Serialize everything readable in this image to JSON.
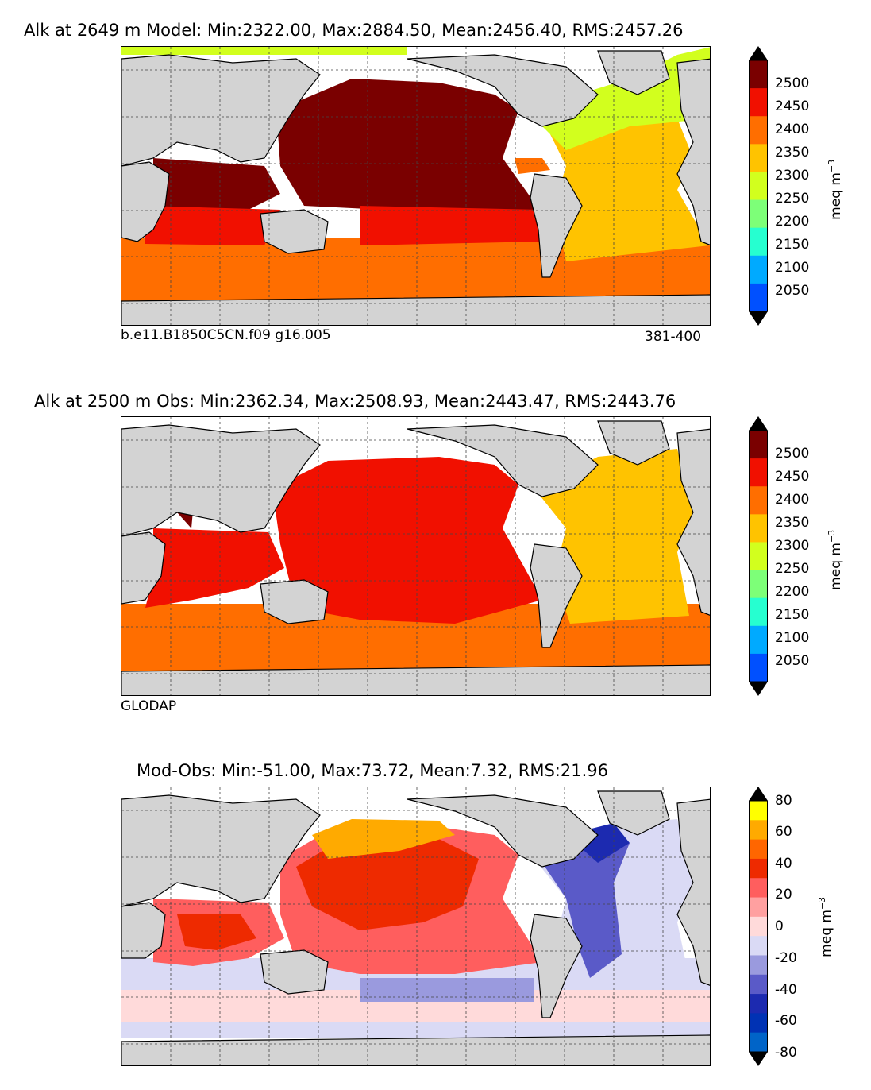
{
  "panels": [
    {
      "title": "Alk at 2649 m Model: Min:2322.00, Max:2884.50, Mean:2456.40, RMS:2457.26",
      "caption_left": "b.e11.B1850C5CN.f09 g16.005",
      "caption_right": "381-400"
    },
    {
      "title": "Alk at 2500 m Obs: Min:2362.34, Max:2508.93, Mean:2443.47, RMS:2443.76",
      "caption_left": "GLODAP",
      "caption_right": ""
    },
    {
      "title": "Mod-Obs: Min:-51.00, Max:73.72, Mean:7.32, RMS:21.96",
      "caption_left": "",
      "caption_right": ""
    }
  ],
  "colorbars": {
    "alk": {
      "unit_main": "meq m",
      "unit_exp": "−3",
      "ticks": [
        "2500",
        "2450",
        "2400",
        "2350",
        "2300",
        "2250",
        "2200",
        "2150",
        "2100",
        "2050"
      ],
      "colors": [
        "#7a0000",
        "#f11000",
        "#ff6e00",
        "#ffc300",
        "#d2ff1e",
        "#7dff78",
        "#26ffd0",
        "#00aaff",
        "#0050ff",
        "#0000ff",
        "#00007a"
      ]
    },
    "diff": {
      "unit_main": "meq m",
      "unit_exp": "−3",
      "ticks": [
        "80",
        "60",
        "40",
        "20",
        "0",
        "-20",
        "-40",
        "-60",
        "-80"
      ],
      "colors": [
        "#ffff00",
        "#ffaa00",
        "#ff6600",
        "#ee2a00",
        "#ff5e5e",
        "#ffa0a0",
        "#ffdada",
        "#dadaf5",
        "#9a9ade",
        "#5a5ac8",
        "#1c2ab0",
        "#0032b4",
        "#0064c8",
        "#00a0e0",
        "#00e6ff"
      ]
    }
  }
}
